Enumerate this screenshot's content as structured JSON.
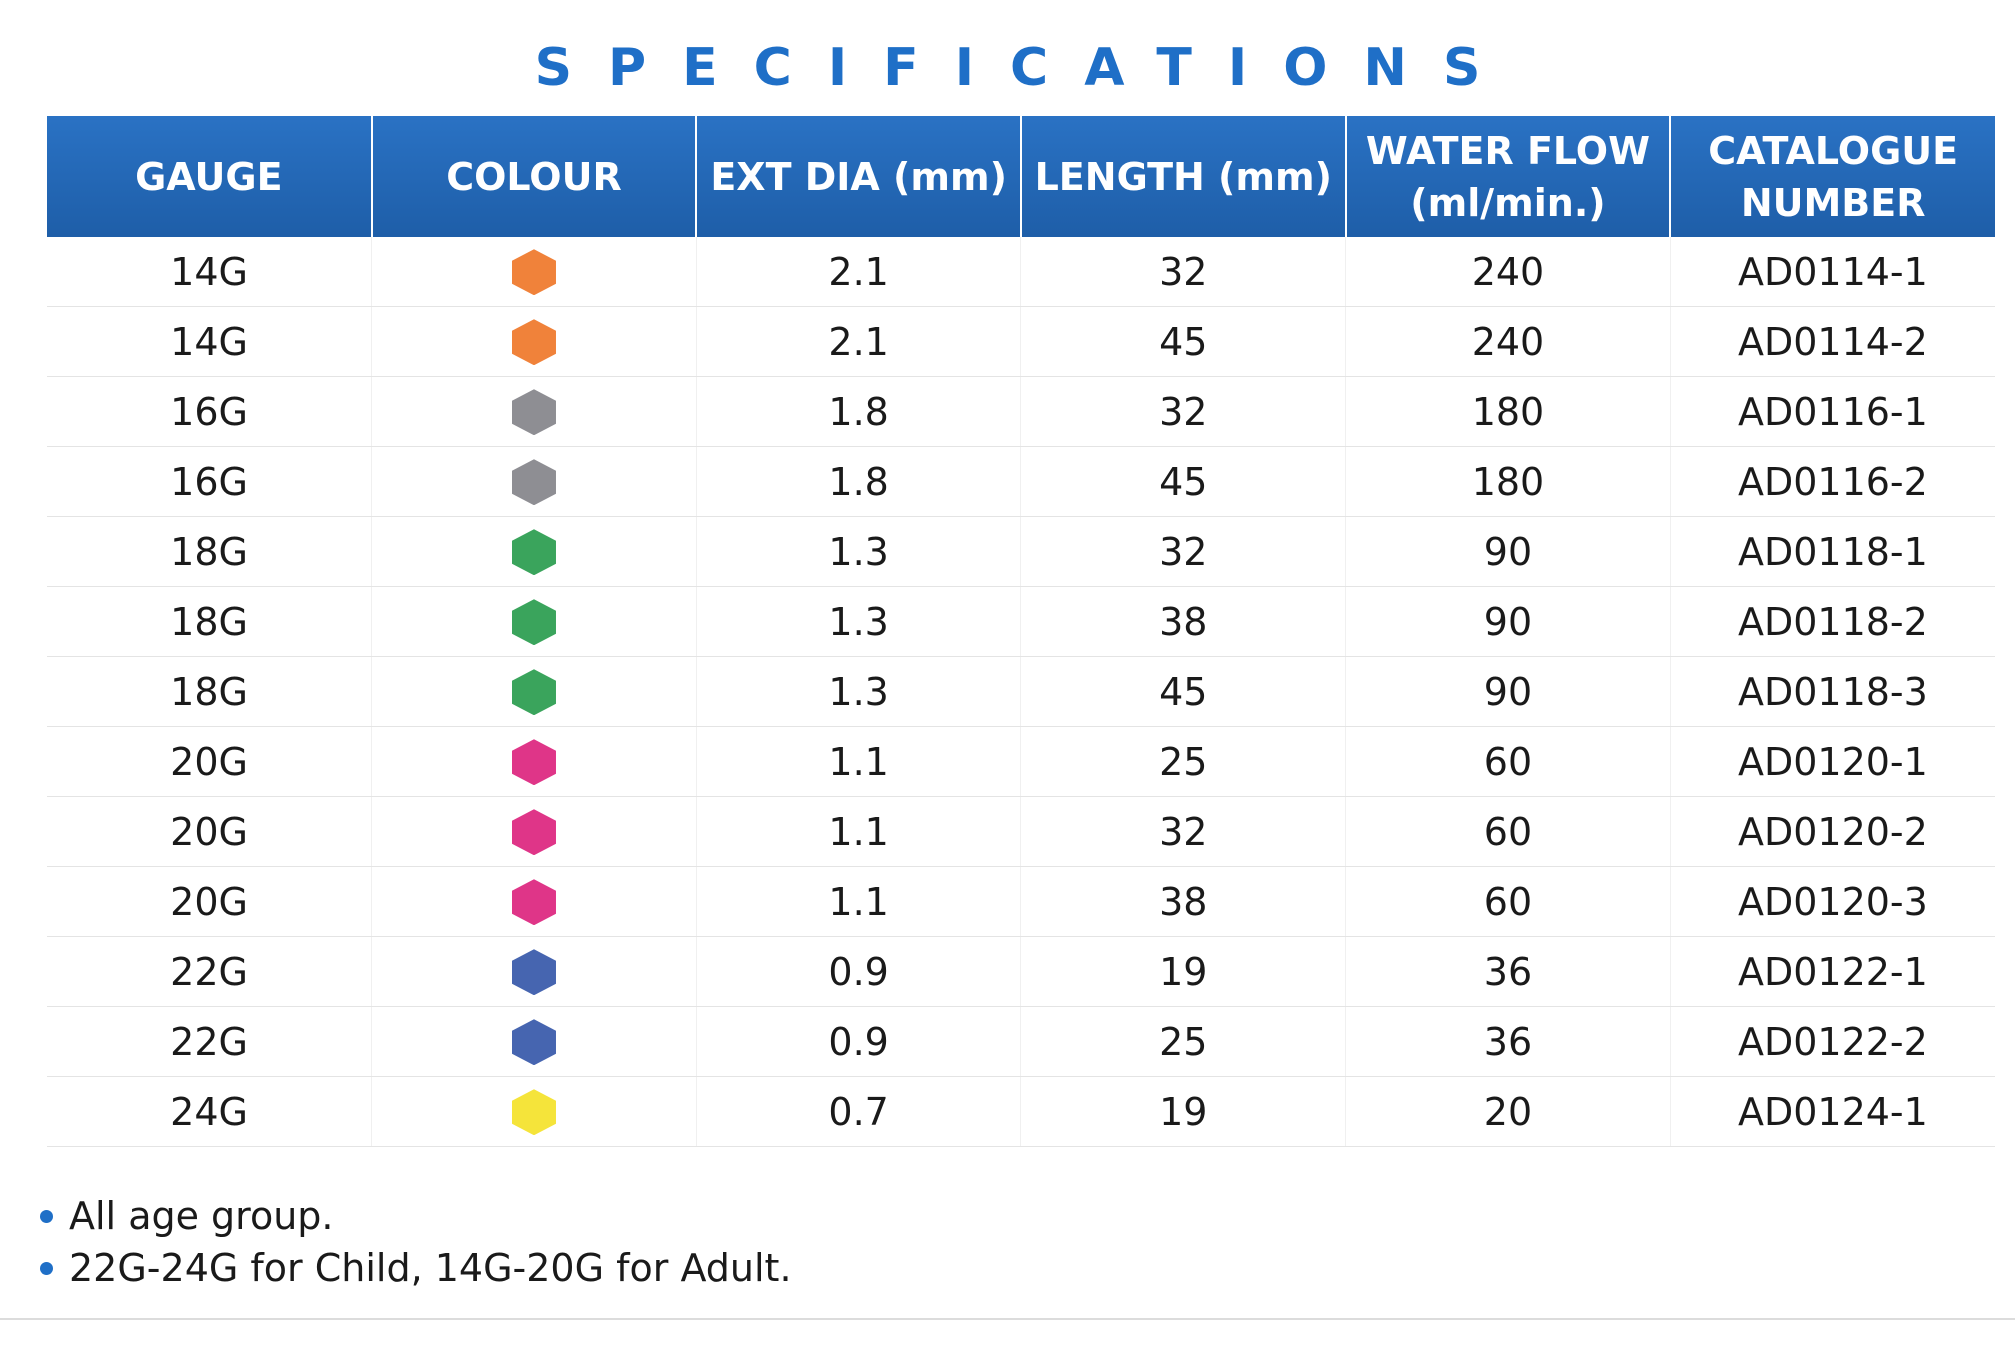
{
  "title": "SPECIFICATIONS",
  "table": {
    "headers": [
      {
        "line1": "GAUGE",
        "line2": ""
      },
      {
        "line1": "COLOUR",
        "line2": ""
      },
      {
        "line1": "EXT DIA (mm)",
        "line2": ""
      },
      {
        "line1": "LENGTH (mm)",
        "line2": ""
      },
      {
        "line1": "WATER FLOW",
        "line2": "(ml/min.)"
      },
      {
        "line1": "CATALOGUE",
        "line2": "NUMBER"
      }
    ],
    "rows": [
      {
        "gauge": "14G",
        "colour": "orange-hexagon-icon",
        "colour_hex": "#f0823a",
        "ext_dia": "2.1",
        "length": "32",
        "water_flow": "240",
        "catalogue": "AD0114-1"
      },
      {
        "gauge": "14G",
        "colour": "orange-hexagon-icon",
        "colour_hex": "#f0823a",
        "ext_dia": "2.1",
        "length": "45",
        "water_flow": "240",
        "catalogue": "AD0114-2"
      },
      {
        "gauge": "16G",
        "colour": "grey-hexagon-icon",
        "colour_hex": "#8e8e93",
        "ext_dia": "1.8",
        "length": "32",
        "water_flow": "180",
        "catalogue": "AD0116-1"
      },
      {
        "gauge": "16G",
        "colour": "grey-hexagon-icon",
        "colour_hex": "#8e8e93",
        "ext_dia": "1.8",
        "length": "45",
        "water_flow": "180",
        "catalogue": "AD0116-2"
      },
      {
        "gauge": "18G",
        "colour": "green-hexagon-icon",
        "colour_hex": "#3aa45c",
        "ext_dia": "1.3",
        "length": "32",
        "water_flow": "90",
        "catalogue": "AD0118-1"
      },
      {
        "gauge": "18G",
        "colour": "green-hexagon-icon",
        "colour_hex": "#3aa45c",
        "ext_dia": "1.3",
        "length": "38",
        "water_flow": "90",
        "catalogue": "AD0118-2"
      },
      {
        "gauge": "18G",
        "colour": "green-hexagon-icon",
        "colour_hex": "#3aa45c",
        "ext_dia": "1.3",
        "length": "45",
        "water_flow": "90",
        "catalogue": "AD0118-3"
      },
      {
        "gauge": "20G",
        "colour": "pink-hexagon-icon",
        "colour_hex": "#df3588",
        "ext_dia": "1.1",
        "length": "25",
        "water_flow": "60",
        "catalogue": "AD0120-1"
      },
      {
        "gauge": "20G",
        "colour": "pink-hexagon-icon",
        "colour_hex": "#df3588",
        "ext_dia": "1.1",
        "length": "32",
        "water_flow": "60",
        "catalogue": "AD0120-2"
      },
      {
        "gauge": "20G",
        "colour": "pink-hexagon-icon",
        "colour_hex": "#df3588",
        "ext_dia": "1.1",
        "length": "38",
        "water_flow": "60",
        "catalogue": "AD0120-3"
      },
      {
        "gauge": "22G",
        "colour": "blue-hexagon-icon",
        "colour_hex": "#4665b0",
        "ext_dia": "0.9",
        "length": "19",
        "water_flow": "36",
        "catalogue": "AD0122-1"
      },
      {
        "gauge": "22G",
        "colour": "blue-hexagon-icon",
        "colour_hex": "#4665b0",
        "ext_dia": "0.9",
        "length": "25",
        "water_flow": "36",
        "catalogue": "AD0122-2"
      },
      {
        "gauge": "24G",
        "colour": "yellow-hexagon-icon",
        "colour_hex": "#f5e43a",
        "ext_dia": "0.7",
        "length": "19",
        "water_flow": "20",
        "catalogue": "AD0124-1"
      }
    ]
  },
  "notes": [
    "All age group.",
    "22G-24G for Child, 14G-20G for Adult."
  ],
  "colors": {
    "accent": "#1f6fc7",
    "header_bg": "#2268b8"
  }
}
